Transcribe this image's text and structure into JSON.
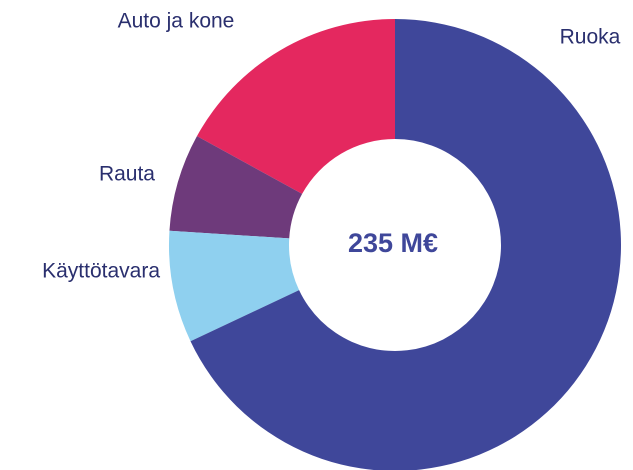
{
  "chart_data": {
    "type": "donut",
    "center_label": "235 M€",
    "categories": [
      "Ruoka",
      "Käyttötavara",
      "Rauta",
      "Auto ja kone"
    ],
    "values": [
      68,
      8,
      7,
      17
    ],
    "colors": [
      "#3f479a",
      "#8fd0ef",
      "#6e3a7b",
      "#e4285f"
    ]
  }
}
